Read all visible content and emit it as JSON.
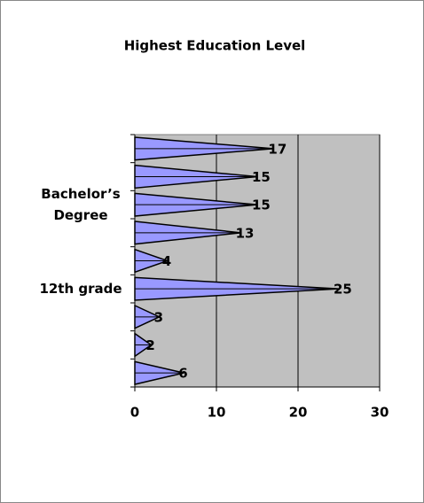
{
  "chart_data": {
    "type": "bar",
    "orientation": "horizontal",
    "title": "Highest Education Level",
    "categories": [
      null,
      null,
      "Bachelor’s Degree",
      null,
      null,
      "12th grade",
      null,
      null,
      null
    ],
    "values": [
      17,
      15,
      15,
      13,
      4,
      25,
      3,
      2,
      6
    ],
    "color": "#9999ff",
    "xlim": [
      0,
      30
    ],
    "xticks": [
      0,
      10,
      20,
      30
    ],
    "grid": true
  }
}
